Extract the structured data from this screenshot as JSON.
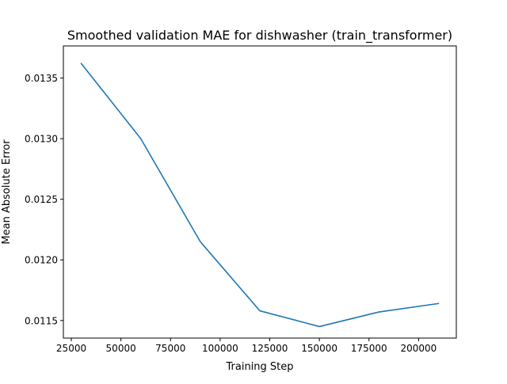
{
  "chart_data": {
    "type": "line",
    "title": "Smoothed validation MAE for dishwasher (train_transformer)",
    "xlabel": "Training Step",
    "ylabel": "Mean Absolute Error",
    "xlim": [
      21000,
      219000
    ],
    "ylim": [
      0.011355,
      0.013765
    ],
    "xticks": [
      25000,
      50000,
      75000,
      100000,
      125000,
      150000,
      175000,
      200000
    ],
    "xtick_labels": [
      "25000",
      "50000",
      "75000",
      "100000",
      "125000",
      "150000",
      "175000",
      "200000"
    ],
    "yticks": [
      0.0115,
      0.012,
      0.0125,
      0.013,
      0.0135
    ],
    "ytick_labels": [
      "0.0115",
      "0.0120",
      "0.0125",
      "0.0130",
      "0.0135"
    ],
    "grid": false,
    "series": [
      {
        "color": "#1f77b4",
        "x": [
          30000,
          60000,
          90000,
          120000,
          150000,
          180000,
          210000
        ],
        "y": [
          0.01362,
          0.013,
          0.01215,
          0.01158,
          0.01145,
          0.01157,
          0.01164
        ]
      }
    ]
  }
}
